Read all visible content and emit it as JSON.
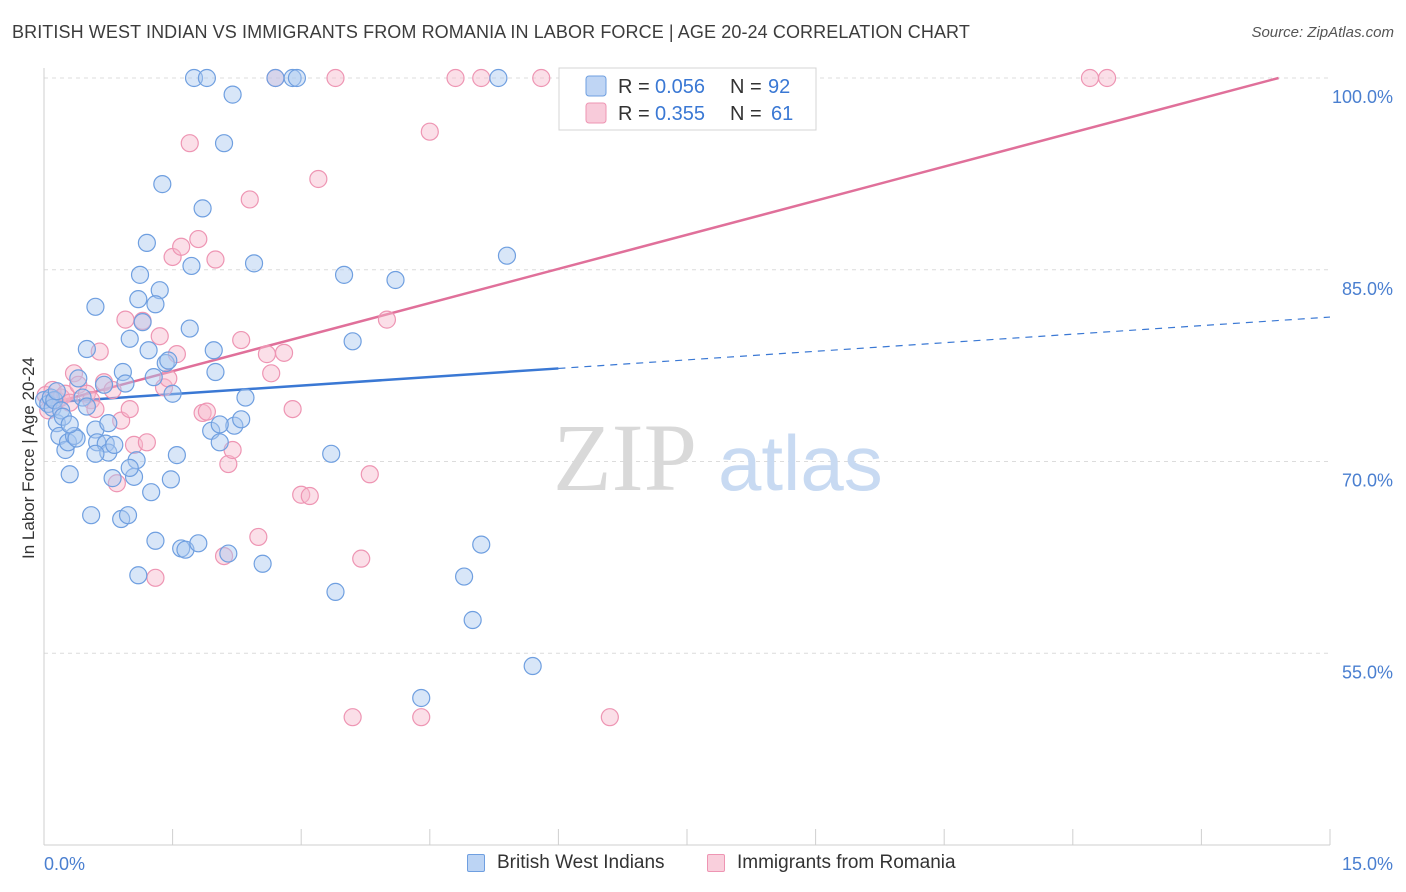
{
  "header": {
    "title": "BRITISH WEST INDIAN VS IMMIGRANTS FROM ROMANIA IN LABOR FORCE | AGE 20-24 CORRELATION CHART",
    "source": "Source: ZipAtlas.com"
  },
  "watermark": {
    "zip": "ZIP",
    "atlas": "atlas"
  },
  "legend": {
    "r_label": "R =",
    "n_label": "N =",
    "series": [
      {
        "r": "0.056",
        "n": "92"
      },
      {
        "r": "0.355",
        "n": "61"
      }
    ]
  },
  "colors": {
    "blue_fill": "#a9c7f0",
    "blue_stroke": "#6f9fe0",
    "blue_line": "#3a78d4",
    "pink_fill": "#f6b9cd",
    "pink_stroke": "#ee95b3",
    "pink_line": "#e0709a",
    "grid": "#dcdcdc",
    "axis_text": "#4a7fd0"
  },
  "chart_data": {
    "type": "scatter",
    "title": "BRITISH WEST INDIAN VS IMMIGRANTS FROM ROMANIA IN LABOR FORCE | AGE 20-24 CORRELATION CHART",
    "xlabel": "",
    "ylabel": "In Labor Force | Age 20-24",
    "xlim": [
      0,
      15
    ],
    "ylim": [
      40,
      100
    ],
    "x_tick_labels": [
      "0.0%",
      "15.0%"
    ],
    "y_ticks": [
      55,
      70,
      85,
      100
    ],
    "y_tick_labels": [
      "55.0%",
      "70.0%",
      "85.0%",
      "100.0%"
    ],
    "grid": true,
    "legend_position": "top-center",
    "series": [
      {
        "name": "British West Indians",
        "r": 0.056,
        "n": 92,
        "trend": {
          "x0": 0,
          "y0": 74.6,
          "x1": 15,
          "y1": 81.3,
          "solid_until_x": 6.0
        },
        "points": [
          [
            0.0,
            74.8
          ],
          [
            0.05,
            74.5
          ],
          [
            0.08,
            75.0
          ],
          [
            0.1,
            74.2
          ],
          [
            0.12,
            74.8
          ],
          [
            0.15,
            73.0
          ],
          [
            0.18,
            72.0
          ],
          [
            0.2,
            74.0
          ],
          [
            0.22,
            73.5
          ],
          [
            0.25,
            70.9
          ],
          [
            0.28,
            71.5
          ],
          [
            0.3,
            69.0
          ],
          [
            0.35,
            72.0
          ],
          [
            0.38,
            71.8
          ],
          [
            0.4,
            76.5
          ],
          [
            0.45,
            75.0
          ],
          [
            0.5,
            74.3
          ],
          [
            0.55,
            65.8
          ],
          [
            0.6,
            72.5
          ],
          [
            0.62,
            71.5
          ],
          [
            0.7,
            76.0
          ],
          [
            0.72,
            71.4
          ],
          [
            0.75,
            70.7
          ],
          [
            0.8,
            68.7
          ],
          [
            0.82,
            71.3
          ],
          [
            0.9,
            65.5
          ],
          [
            0.92,
            77.0
          ],
          [
            0.95,
            76.1
          ],
          [
            0.98,
            65.8
          ],
          [
            1.0,
            79.6
          ],
          [
            1.05,
            68.8
          ],
          [
            1.08,
            70.1
          ],
          [
            1.1,
            82.7
          ],
          [
            1.12,
            84.6
          ],
          [
            1.15,
            80.9
          ],
          [
            1.2,
            87.1
          ],
          [
            1.22,
            78.7
          ],
          [
            1.25,
            67.6
          ],
          [
            1.28,
            76.6
          ],
          [
            1.3,
            63.8
          ],
          [
            1.35,
            83.4
          ],
          [
            1.38,
            91.7
          ],
          [
            1.42,
            77.7
          ],
          [
            1.45,
            77.9
          ],
          [
            1.5,
            75.3
          ],
          [
            1.55,
            70.5
          ],
          [
            1.6,
            63.2
          ],
          [
            1.65,
            63.1
          ],
          [
            1.7,
            80.4
          ],
          [
            1.72,
            85.3
          ],
          [
            1.75,
            100.0
          ],
          [
            1.8,
            63.6
          ],
          [
            1.85,
            89.8
          ],
          [
            1.9,
            100.0
          ],
          [
            1.95,
            72.4
          ],
          [
            1.98,
            78.7
          ],
          [
            2.0,
            77.0
          ],
          [
            2.05,
            71.5
          ],
          [
            2.1,
            94.9
          ],
          [
            2.15,
            62.8
          ],
          [
            2.2,
            98.7
          ],
          [
            2.22,
            72.8
          ],
          [
            2.3,
            73.3
          ],
          [
            2.35,
            75.0
          ],
          [
            2.45,
            85.5
          ],
          [
            2.55,
            62.0
          ],
          [
            2.7,
            100.0
          ],
          [
            2.9,
            100.0
          ],
          [
            2.95,
            100.0
          ],
          [
            3.35,
            70.6
          ],
          [
            3.4,
            59.8
          ],
          [
            3.5,
            84.6
          ],
          [
            3.6,
            79.4
          ],
          [
            4.1,
            84.2
          ],
          [
            4.4,
            51.5
          ],
          [
            4.9,
            61.0
          ],
          [
            5.0,
            57.6
          ],
          [
            5.1,
            63.5
          ],
          [
            5.3,
            100.0
          ],
          [
            5.4,
            86.1
          ],
          [
            5.7,
            54.0
          ],
          [
            1.1,
            61.1
          ],
          [
            0.6,
            82.1
          ],
          [
            0.3,
            72.9
          ],
          [
            0.15,
            75.5
          ],
          [
            0.6,
            70.6
          ],
          [
            1.0,
            69.5
          ],
          [
            1.3,
            82.3
          ],
          [
            0.5,
            78.8
          ],
          [
            0.75,
            73.0
          ],
          [
            1.48,
            68.6
          ],
          [
            2.05,
            72.9
          ]
        ]
      },
      {
        "name": "Immigrants from Romania",
        "r": 0.355,
        "n": 61,
        "trend": {
          "x0": 0,
          "y0": 74.4,
          "x1": 14.4,
          "y1": 100.0
        },
        "points": [
          [
            0.02,
            75.2
          ],
          [
            0.05,
            74.0
          ],
          [
            0.1,
            75.6
          ],
          [
            0.15,
            74.8
          ],
          [
            0.2,
            75.0
          ],
          [
            0.25,
            75.3
          ],
          [
            0.3,
            74.6
          ],
          [
            0.35,
            76.9
          ],
          [
            0.4,
            76.0
          ],
          [
            0.5,
            75.3
          ],
          [
            0.55,
            74.8
          ],
          [
            0.6,
            74.1
          ],
          [
            0.65,
            78.6
          ],
          [
            0.7,
            76.2
          ],
          [
            0.8,
            75.6
          ],
          [
            0.85,
            68.3
          ],
          [
            0.9,
            73.2
          ],
          [
            0.95,
            81.1
          ],
          [
            1.0,
            74.1
          ],
          [
            1.05,
            71.3
          ],
          [
            1.15,
            81.0
          ],
          [
            1.2,
            71.5
          ],
          [
            1.3,
            60.9
          ],
          [
            1.35,
            79.8
          ],
          [
            1.4,
            75.8
          ],
          [
            1.45,
            76.5
          ],
          [
            1.5,
            86.0
          ],
          [
            1.55,
            78.4
          ],
          [
            1.6,
            86.8
          ],
          [
            1.7,
            94.9
          ],
          [
            1.8,
            87.4
          ],
          [
            1.85,
            73.8
          ],
          [
            1.9,
            73.9
          ],
          [
            2.0,
            85.8
          ],
          [
            2.1,
            62.6
          ],
          [
            2.15,
            69.8
          ],
          [
            2.2,
            70.9
          ],
          [
            2.3,
            79.5
          ],
          [
            2.4,
            90.5
          ],
          [
            2.5,
            64.1
          ],
          [
            2.6,
            78.4
          ],
          [
            2.65,
            76.9
          ],
          [
            2.7,
            100.0
          ],
          [
            2.8,
            78.5
          ],
          [
            2.9,
            74.1
          ],
          [
            3.0,
            67.4
          ],
          [
            3.1,
            67.3
          ],
          [
            3.2,
            92.1
          ],
          [
            3.4,
            100.0
          ],
          [
            3.6,
            50.0
          ],
          [
            3.7,
            62.4
          ],
          [
            3.8,
            69.0
          ],
          [
            4.0,
            81.1
          ],
          [
            4.4,
            50.0
          ],
          [
            4.5,
            95.8
          ],
          [
            4.8,
            100.0
          ],
          [
            5.1,
            100.0
          ],
          [
            5.8,
            100.0
          ],
          [
            6.6,
            50.0
          ],
          [
            12.2,
            100.0
          ],
          [
            12.4,
            100.0
          ]
        ]
      }
    ]
  }
}
